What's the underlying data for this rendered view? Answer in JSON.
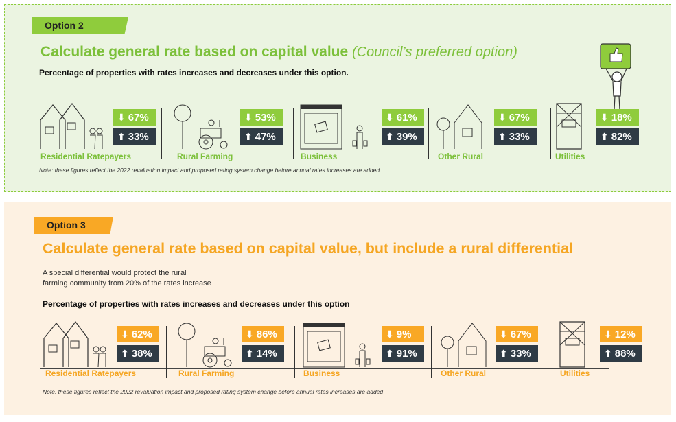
{
  "option2": {
    "tag": "Option 2",
    "title": "Calculate general rate based on capital value",
    "title_sub": "(Council’s preferred option)",
    "heading": "Percentage of properties with rates increases and decreases under this option.",
    "note": "Note: these figures reflect the 2022 revaluation impact and proposed rating system change before annual rates increases are added",
    "categories": [
      {
        "label": "Residential Ratepayers",
        "down": "67%",
        "up": "33%"
      },
      {
        "label": "Rural Farming",
        "down": "53%",
        "up": "47%"
      },
      {
        "label": "Business",
        "down": "61%",
        "up": "39%"
      },
      {
        "label": "Other Rural",
        "down": "67%",
        "up": "33%"
      },
      {
        "label": "Utilities",
        "down": "18%",
        "up": "82%"
      }
    ],
    "accent": "#8fcc3c"
  },
  "option3": {
    "tag": "Option 3",
    "title": "Calculate general rate based on capital value, but include a rural differential",
    "desc_line1": "A special differential would protect the rural",
    "desc_line2": "farming community from 20% of the rates increase",
    "heading": "Percentage of properties with rates increases and decreases under this option",
    "note": "Note: these figures reflect the 2022 revaluation impact and proposed rating system change before annual rates increases are added",
    "categories": [
      {
        "label": "Residential Ratepayers",
        "down": "62%",
        "up": "38%"
      },
      {
        "label": "Rural Farming",
        "down": "86%",
        "up": "14%"
      },
      {
        "label": "Business",
        "down": "9%",
        "up": "91%"
      },
      {
        "label": "Other Rural",
        "down": "67%",
        "up": "33%"
      },
      {
        "label": "Utilities",
        "down": "12%",
        "up": "88%"
      }
    ],
    "accent": "#f9a825"
  },
  "icons": {
    "down": "arrow-down-icon",
    "up": "arrow-up-icon",
    "glyph_down": "⬇",
    "glyph_up": "⬆"
  }
}
